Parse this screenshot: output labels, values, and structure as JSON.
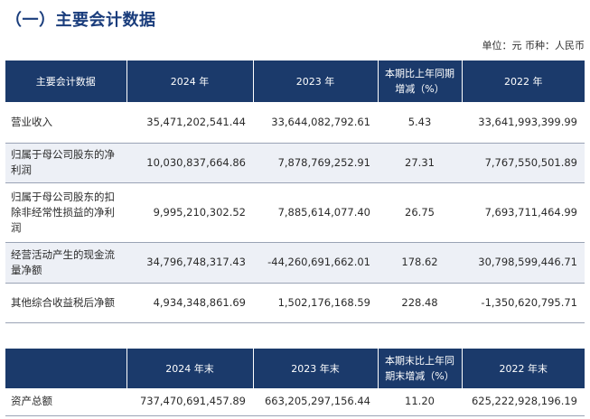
{
  "section_title": "（一）主要会计数据",
  "unit_note": "单位：元  币种：人民币",
  "table1": {
    "headers": [
      "主要会计数据",
      "2024 年",
      "2023 年",
      "本期比上年同期增减（%）",
      "2022 年"
    ],
    "rows": [
      [
        "营业收入",
        "35,471,202,541.44",
        "33,644,082,792.61",
        "5.43",
        "33,641,993,399.99"
      ],
      [
        "归属于母公司股东的净利润",
        "10,030,837,664.86",
        "7,878,769,252.91",
        "27.31",
        "7,767,550,501.89"
      ],
      [
        "归属于母公司股东的扣除非经常性损益的净利润",
        "9,995,210,302.52",
        "7,885,614,077.40",
        "26.75",
        "7,693,711,464.99"
      ],
      [
        "经营活动产生的现金流量净额",
        "34,796,748,317.43",
        "-44,260,691,662.01",
        "178.62",
        "30,798,599,446.71"
      ],
      [
        "其他综合收益税后净额",
        "4,934,348,861.69",
        "1,502,176,168.59",
        "228.48",
        "-1,350,620,795.71"
      ]
    ]
  },
  "table2": {
    "headers": [
      "",
      "2024 年末",
      "2023 年末",
      "本期末比上年同期末增减（%）",
      "2022 年末"
    ],
    "rows": [
      [
        "资产总额",
        "737,470,691,457.89",
        "663,205,297,156.44",
        "11.20",
        "625,222,928,196.19"
      ]
    ]
  }
}
